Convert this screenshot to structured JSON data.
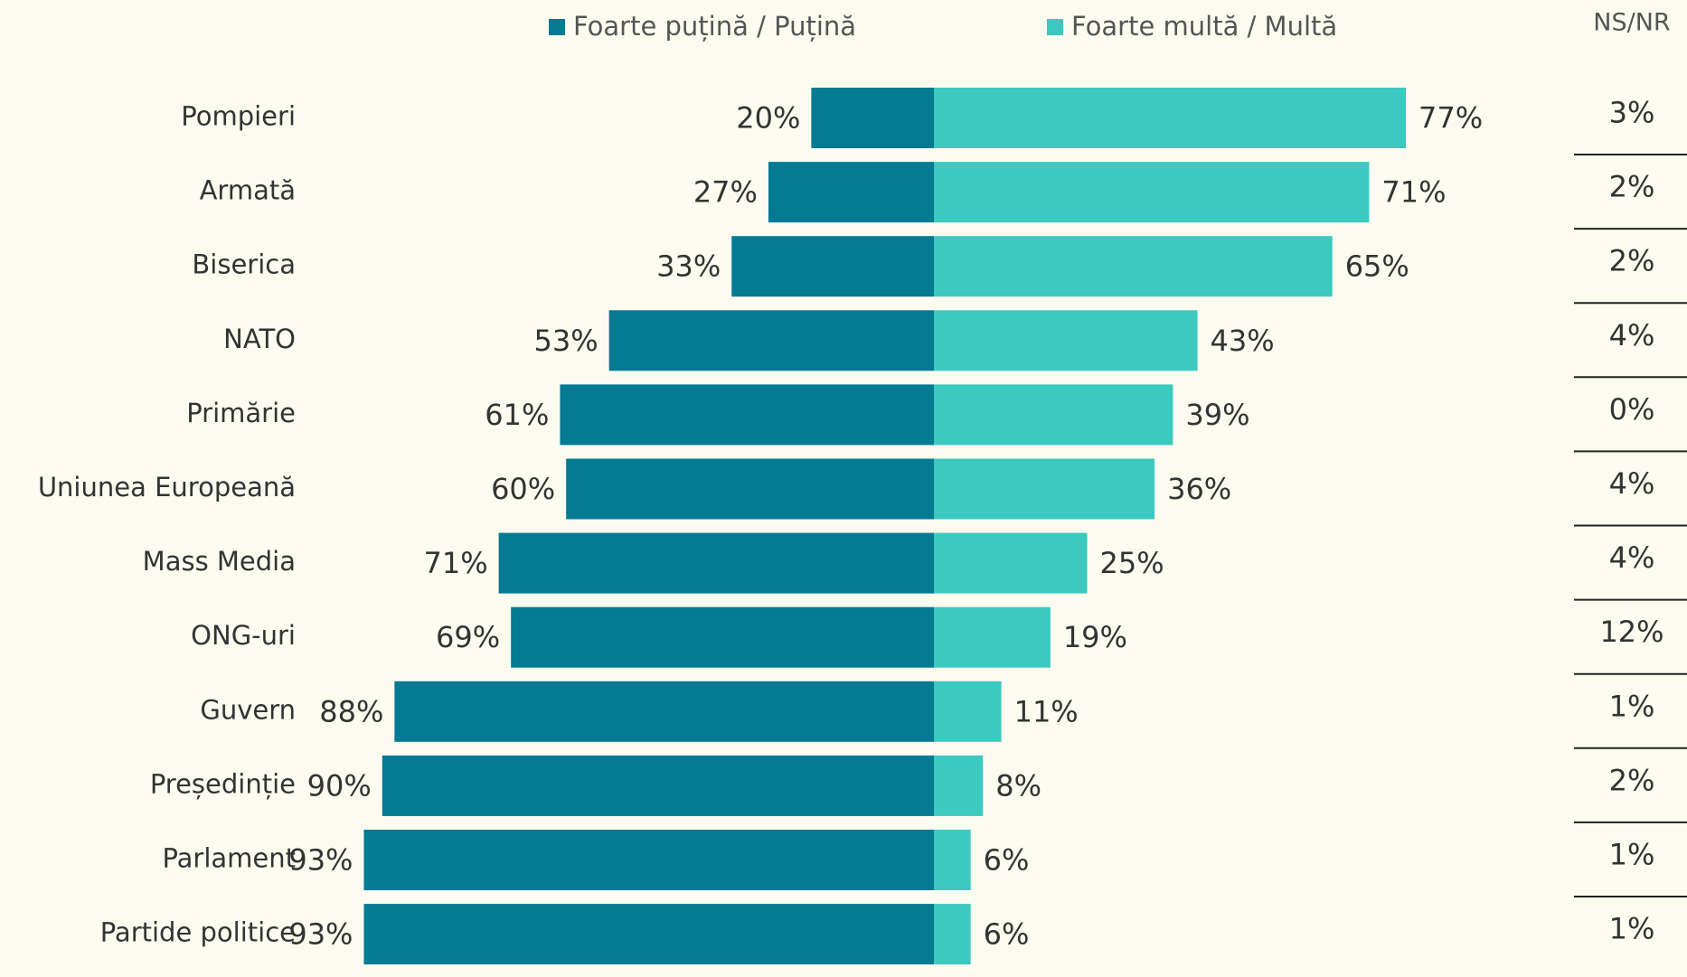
{
  "chart_data": {
    "type": "diverging-bar",
    "categories": [
      "Pompieri",
      "Armată",
      "Biserica",
      "NATO",
      "Primărie",
      "Uniunea Europeană",
      "Mass Media",
      "ONG-uri",
      "Guvern",
      "Președinție",
      "Parlament",
      "Partide politice"
    ],
    "series": [
      {
        "name": "Foarte puțină / Puțină",
        "color": "#047a93",
        "values": [
          20,
          27,
          33,
          53,
          61,
          60,
          71,
          69,
          88,
          90,
          93,
          93
        ],
        "value_labels": [
          "20%",
          "27%",
          "33%",
          "53%",
          "61%",
          "60%",
          "71%",
          "69%",
          "88%",
          "90%",
          "93%",
          "93%"
        ]
      },
      {
        "name": "Foarte multă / Multă",
        "color": "#3cc9bf",
        "values": [
          77,
          71,
          65,
          43,
          39,
          36,
          25,
          19,
          11,
          8,
          6,
          6
        ],
        "value_labels": [
          "77%",
          "71%",
          "65%",
          "43%",
          "39%",
          "36%",
          "25%",
          "19%",
          "11%",
          "8%",
          "6%",
          "6%"
        ]
      }
    ],
    "ns_nr": {
      "name": "NS/NR",
      "values": [
        3,
        2,
        2,
        4,
        0,
        4,
        4,
        12,
        1,
        2,
        1,
        1
      ],
      "value_labels": [
        "3%",
        "2%",
        "2%",
        "4%",
        "0%",
        "4%",
        "4%",
        "12%",
        "1%",
        "2%",
        "1%",
        "1%"
      ]
    }
  }
}
